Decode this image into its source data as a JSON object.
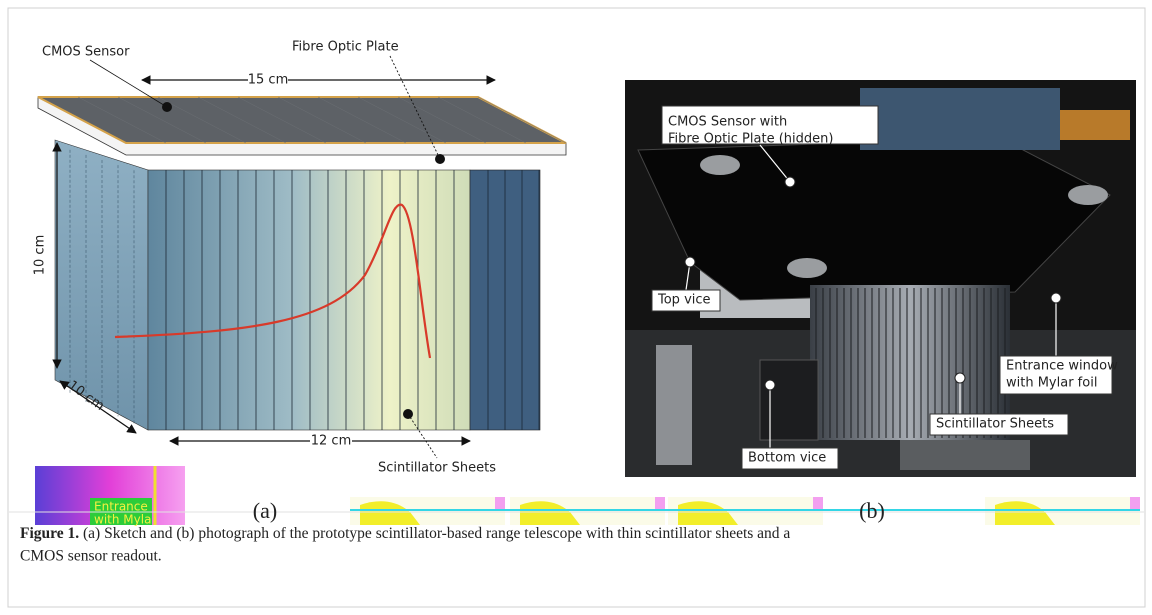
{
  "figure": {
    "panel_a": {
      "labels": {
        "cmos_sensor": "CMOS Sensor",
        "fibre_optic_plate": "Fibre Optic Plate",
        "width": "15 cm",
        "height": "10 cm",
        "depth": "10 cm",
        "length": "12 cm",
        "scintillator_sheets": "Scintillator Sheets"
      },
      "tag": "(a)"
    },
    "panel_b": {
      "callouts": [
        {
          "lines": [
            "CMOS Sensor with",
            "Fibre Optic Plate (hidden)"
          ]
        },
        {
          "lines": [
            "Top vice"
          ]
        },
        {
          "lines": [
            "Entrance window",
            "with Mylar foil"
          ]
        },
        {
          "lines": [
            "Scintillator Sheets"
          ]
        },
        {
          "lines": [
            "Bottom vice"
          ]
        }
      ],
      "tag": "(b)"
    },
    "artifacts": [
      "Entrance",
      "with Myla"
    ],
    "caption": {
      "label": "Figure 1.",
      "lines": [
        "(a) Sketch and (b) photograph of the prototype scintillator-based range telescope with thin scintillator sheets and a",
        "CMOS sensor readout."
      ]
    }
  }
}
